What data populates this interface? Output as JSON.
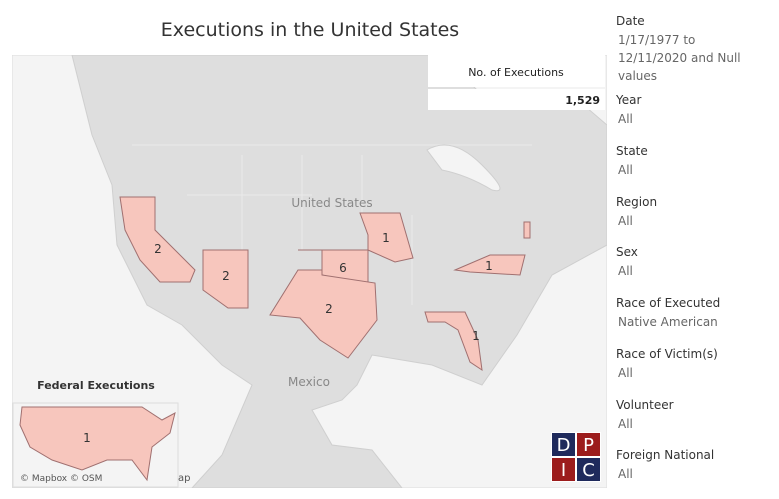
{
  "title": "Executions in the United States",
  "kpi": {
    "label": "No. of Executions",
    "value": "1,529"
  },
  "map": {
    "place_labels": [
      "United States",
      "Mexico"
    ],
    "state_counts": [
      2,
      2,
      6,
      2,
      1,
      1,
      1
    ],
    "federal": {
      "title": "Federal Executions",
      "count": 1
    },
    "attribution": "© Mapbox © OSM",
    "cut_text": "ap"
  },
  "logo": [
    "D",
    "P",
    "I",
    "C"
  ],
  "filters": [
    {
      "label": "Date",
      "value": "1/17/1977 to 12/11/2020 and Null values"
    },
    {
      "label": "Year",
      "value": "All"
    },
    {
      "label": "State",
      "value": "All"
    },
    {
      "label": "Region",
      "value": "All"
    },
    {
      "label": "Sex",
      "value": "All"
    },
    {
      "label": "Race of Executed",
      "value": "Native American"
    },
    {
      "label": "Race of Victim(s)",
      "value": "All"
    },
    {
      "label": "Volunteer",
      "value": "All"
    },
    {
      "label": "Foreign National",
      "value": "All"
    }
  ]
}
